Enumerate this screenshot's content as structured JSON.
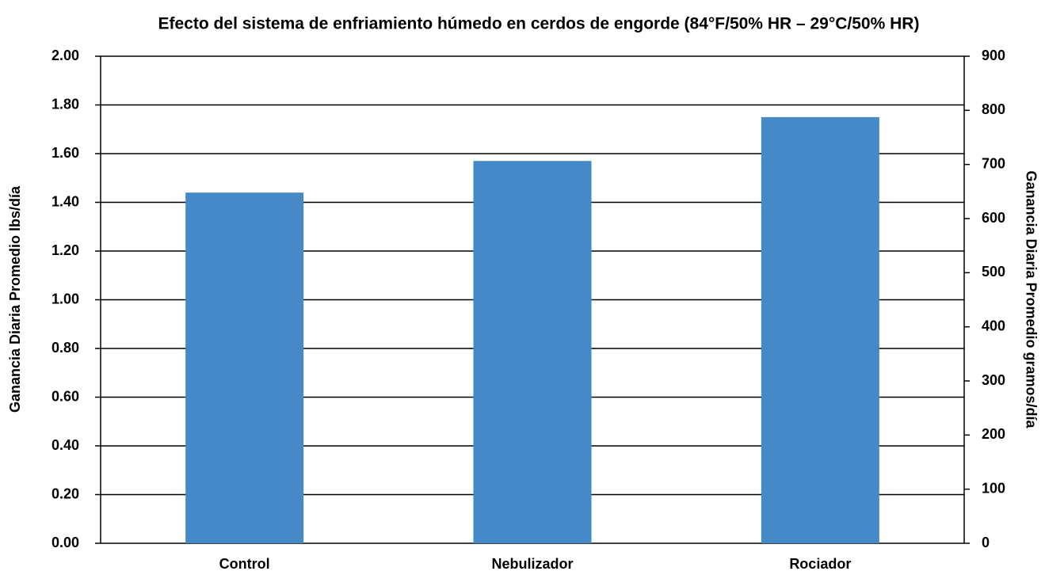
{
  "chart_data": {
    "type": "bar",
    "title": "Efecto del sistema de enfriamiento húmedo en cerdos de engorde (84°F/50% HR – 29°C/50% HR)",
    "ylabel": "Ganancia Diaria Promedio lbs/día",
    "y2label": "Ganancia Diaria Promedio gramos/día",
    "categories": [
      "Control",
      "Nebulizador",
      "Rociador"
    ],
    "values": [
      1.44,
      1.57,
      1.75
    ],
    "color": "#4589c9",
    "ylim": [
      0,
      2
    ],
    "yticks": [
      {
        "value": 0,
        "label": "0.00"
      },
      {
        "value": 0.2,
        "label": "0.20"
      },
      {
        "value": 0.4,
        "label": "0.40"
      },
      {
        "value": 0.6,
        "label": "0.60"
      },
      {
        "value": 0.8,
        "label": "0.80"
      },
      {
        "value": 1,
        "label": "1.00"
      },
      {
        "value": 1.2,
        "label": "1.20"
      },
      {
        "value": 1.4,
        "label": "1.40"
      },
      {
        "value": 1.6,
        "label": "1.60"
      },
      {
        "value": 1.8,
        "label": "1.80"
      },
      {
        "value": 2,
        "label": "2.00"
      }
    ],
    "y2lim": [
      0,
      900
    ],
    "y2ticks": [
      0,
      100,
      200,
      300,
      400,
      500,
      600,
      700,
      800,
      900
    ],
    "grid": true
  }
}
